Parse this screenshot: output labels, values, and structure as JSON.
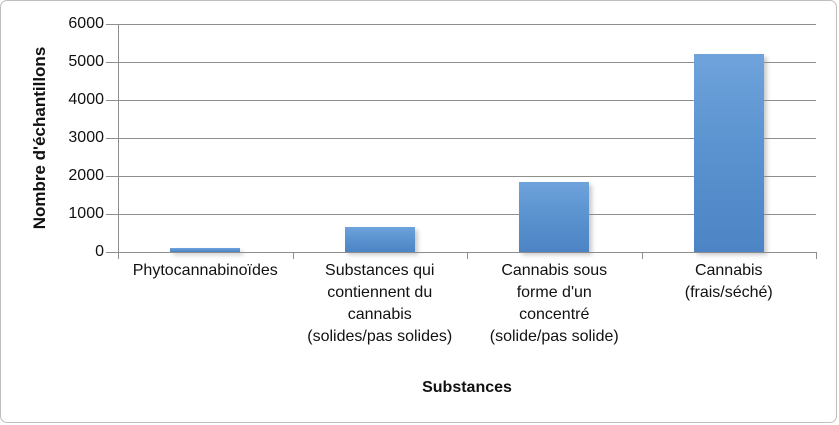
{
  "chart_data": {
    "type": "bar",
    "title": "",
    "categories": [
      "Phytocannabinoïdes",
      "Substances qui contiennent du cannabis (solides/pas solides)",
      "Cannabis sous forme d'un concentré (solide/pas solide)",
      "Cannabis (frais/séché)"
    ],
    "values": [
      100,
      650,
      1830,
      5200
    ],
    "xlabel": "Substances",
    "ylabel": "Nombre d'échantillons",
    "ylim": [
      0,
      6000
    ],
    "ytick_interval": 1000,
    "yticks": [
      0,
      1000,
      2000,
      3000,
      4000,
      5000,
      6000
    ],
    "grid": true,
    "legend": false,
    "bar_color": "#5b94d0",
    "gridline_color": "#8e8e8e"
  },
  "display": {
    "category_labels_multiline": [
      "Phytocannabinoïdes",
      "Substances qui\ncontiennent du\ncannabis\n(solides/pas solides)",
      "Cannabis sous\nforme d'un\nconcentré\n(solide/pas solide)",
      "Cannabis\n(frais/séché)"
    ]
  }
}
